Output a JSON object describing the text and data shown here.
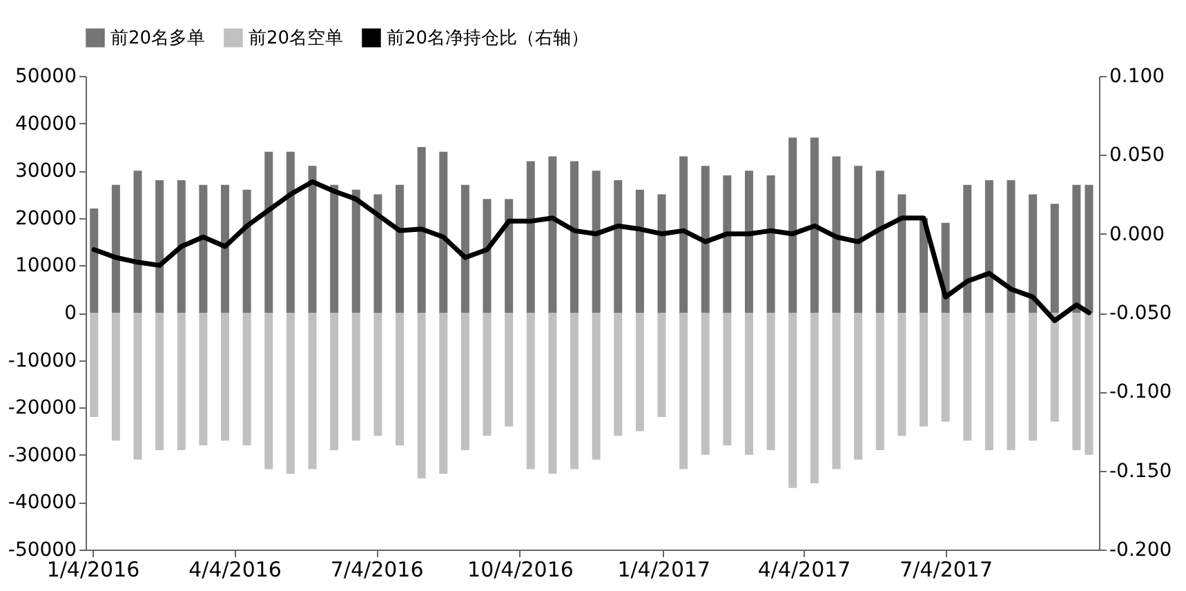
{
  "chart_data": {
    "type": "bar",
    "stacked": true,
    "legend": "top",
    "grid": false,
    "x": [
      "2016-01-05",
      "2016-01-19",
      "2016-02-02",
      "2016-02-16",
      "2016-03-01",
      "2016-03-15",
      "2016-03-29",
      "2016-04-12",
      "2016-04-26",
      "2016-05-10",
      "2016-05-24",
      "2016-06-07",
      "2016-06-21",
      "2016-07-05",
      "2016-07-19",
      "2016-08-02",
      "2016-08-16",
      "2016-08-30",
      "2016-09-13",
      "2016-09-27",
      "2016-10-11",
      "2016-10-25",
      "2016-11-08",
      "2016-11-22",
      "2016-12-06",
      "2016-12-20",
      "2017-01-03",
      "2017-01-17",
      "2017-01-31",
      "2017-02-14",
      "2017-02-28",
      "2017-03-14",
      "2017-03-28",
      "2017-04-11",
      "2017-04-25",
      "2017-05-09",
      "2017-05-23",
      "2017-06-06",
      "2017-06-20",
      "2017-07-04",
      "2017-07-18",
      "2017-08-01",
      "2017-08-15",
      "2017-08-29",
      "2017-09-12",
      "2017-09-26",
      "2017-10-04"
    ],
    "series": [
      {
        "name": "前20名多单",
        "color": "#757575",
        "values": [
          22000,
          27000,
          30000,
          28000,
          28000,
          27000,
          27000,
          26000,
          34000,
          34000,
          31000,
          27000,
          26000,
          25000,
          27000,
          35000,
          34000,
          27000,
          24000,
          24000,
          32000,
          33000,
          32000,
          30000,
          28000,
          26000,
          25000,
          33000,
          31000,
          29000,
          30000,
          29000,
          37000,
          37000,
          33000,
          31000,
          30000,
          25000,
          20000,
          19000,
          27000,
          28000,
          28000,
          25000,
          23000,
          27000,
          27000
        ]
      },
      {
        "name": "前20名空单",
        "color": "#c0c0c0",
        "values": [
          -22000,
          -27000,
          -31000,
          -29000,
          -29000,
          -28000,
          -27000,
          -28000,
          -33000,
          -34000,
          -33000,
          -29000,
          -27000,
          -26000,
          -28000,
          -35000,
          -34000,
          -29000,
          -26000,
          -24000,
          -33000,
          -34000,
          -33000,
          -31000,
          -26000,
          -25000,
          -22000,
          -33000,
          -30000,
          -28000,
          -30000,
          -29000,
          -37000,
          -36000,
          -33000,
          -31000,
          -29000,
          -26000,
          -24000,
          -23000,
          -27000,
          -29000,
          -29000,
          -27000,
          -23000,
          -29000,
          -30000
        ]
      },
      {
        "name": "前20名净持仓比（右轴）",
        "type": "line",
        "axis": "y2",
        "color": "#000000",
        "values": [
          -0.01,
          -0.015,
          -0.018,
          -0.02,
          -0.008,
          -0.002,
          -0.008,
          0.005,
          0.015,
          0.025,
          0.033,
          0.027,
          0.022,
          0.012,
          0.002,
          0.003,
          -0.002,
          -0.015,
          -0.01,
          0.008,
          0.008,
          0.01,
          0.002,
          0.0,
          0.005,
          0.003,
          0.0,
          0.002,
          -0.005,
          0.0,
          0.0,
          0.002,
          0.0,
          0.005,
          -0.002,
          -0.005,
          0.003,
          0.01,
          0.01,
          -0.04,
          -0.03,
          -0.025,
          -0.035,
          -0.04,
          -0.055,
          -0.045,
          -0.05
        ]
      }
    ],
    "xlim": [
      "2016-01-04",
      "2017-10-06"
    ],
    "xticks": [
      {
        "value": "2016-01-04",
        "label": "1/4/2016"
      },
      {
        "value": "2016-04-04",
        "label": "4/4/2016"
      },
      {
        "value": "2016-07-04",
        "label": "7/4/2016"
      },
      {
        "value": "2016-10-04",
        "label": "10/4/2016"
      },
      {
        "value": "2017-01-04",
        "label": "1/4/2017"
      },
      {
        "value": "2017-04-04",
        "label": "4/4/2017"
      },
      {
        "value": "2017-07-04",
        "label": "7/4/2017"
      }
    ],
    "ylim": [
      -50000,
      50000
    ],
    "yticks": [
      -50000,
      -40000,
      -30000,
      -20000,
      -10000,
      0,
      10000,
      20000,
      30000,
      40000,
      50000
    ],
    "y2lim": [
      -0.2,
      0.1
    ],
    "y2ticks": [
      {
        "value": -0.2,
        "label": "-0.200"
      },
      {
        "value": -0.15,
        "label": "-0.150"
      },
      {
        "value": -0.1,
        "label": "-0.100"
      },
      {
        "value": -0.05,
        "label": "-0.050"
      },
      {
        "value": 0,
        "label": "0.000"
      },
      {
        "value": 0.05,
        "label": "0.050"
      },
      {
        "value": 0.1,
        "label": "0.100"
      }
    ]
  }
}
